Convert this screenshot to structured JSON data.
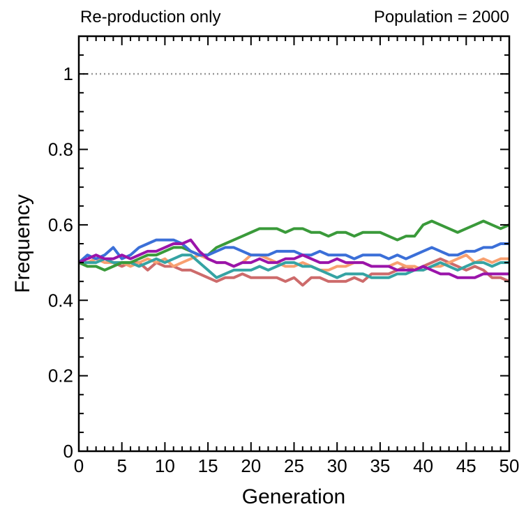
{
  "chart_data": {
    "type": "line",
    "title_left": "Re-production only",
    "title_right": "Population = 2000",
    "xlabel": "Generation",
    "ylabel": "Frequency",
    "x": [
      0,
      1,
      2,
      3,
      4,
      5,
      6,
      7,
      8,
      9,
      10,
      11,
      12,
      13,
      14,
      15,
      16,
      17,
      18,
      19,
      20,
      21,
      22,
      23,
      24,
      25,
      26,
      27,
      28,
      29,
      30,
      31,
      32,
      33,
      34,
      35,
      36,
      37,
      38,
      39,
      40,
      41,
      42,
      43,
      44,
      45,
      46,
      47,
      48,
      49,
      50
    ],
    "xlim": [
      0,
      50
    ],
    "xticks": [
      0,
      5,
      10,
      15,
      20,
      25,
      30,
      35,
      40,
      45,
      50
    ],
    "ylim": [
      0,
      1.1
    ],
    "yticks": [
      0,
      0.2,
      0.4,
      0.6,
      0.8,
      1
    ],
    "minor_divisions": {
      "x": 5,
      "y": 4
    },
    "reference_line": 1,
    "series": [
      {
        "color": "#cd6b6b",
        "values": [
          0.5,
          0.5,
          0.51,
          0.51,
          0.5,
          0.49,
          0.5,
          0.5,
          0.48,
          0.5,
          0.49,
          0.49,
          0.48,
          0.48,
          0.47,
          0.46,
          0.45,
          0.46,
          0.46,
          0.47,
          0.46,
          0.46,
          0.46,
          0.46,
          0.45,
          0.46,
          0.44,
          0.46,
          0.46,
          0.45,
          0.45,
          0.45,
          0.46,
          0.45,
          0.47,
          0.47,
          0.47,
          0.48,
          0.49,
          0.48,
          0.49,
          0.5,
          0.51,
          0.5,
          0.49,
          0.48,
          0.49,
          0.48,
          0.46,
          0.46,
          0.45
        ]
      },
      {
        "color": "#f8a070",
        "values": [
          0.5,
          0.5,
          0.51,
          0.5,
          0.5,
          0.5,
          0.49,
          0.5,
          0.51,
          0.5,
          0.51,
          0.49,
          0.5,
          0.51,
          0.52,
          0.51,
          0.5,
          0.5,
          0.49,
          0.5,
          0.52,
          0.52,
          0.51,
          0.5,
          0.49,
          0.49,
          0.5,
          0.49,
          0.48,
          0.48,
          0.49,
          0.49,
          0.5,
          0.5,
          0.49,
          0.49,
          0.49,
          0.5,
          0.49,
          0.49,
          0.48,
          0.49,
          0.49,
          0.5,
          0.51,
          0.52,
          0.5,
          0.51,
          0.5,
          0.51,
          0.51
        ]
      },
      {
        "color": "#35a3a3",
        "values": [
          0.5,
          0.5,
          0.5,
          0.51,
          0.5,
          0.5,
          0.5,
          0.49,
          0.5,
          0.51,
          0.5,
          0.51,
          0.52,
          0.52,
          0.5,
          0.48,
          0.46,
          0.47,
          0.48,
          0.48,
          0.48,
          0.49,
          0.48,
          0.49,
          0.5,
          0.5,
          0.49,
          0.49,
          0.48,
          0.47,
          0.46,
          0.47,
          0.47,
          0.47,
          0.46,
          0.46,
          0.46,
          0.47,
          0.47,
          0.48,
          0.48,
          0.49,
          0.5,
          0.49,
          0.48,
          0.49,
          0.5,
          0.5,
          0.49,
          0.5,
          0.5
        ]
      },
      {
        "color": "#3a9a3a",
        "values": [
          0.5,
          0.49,
          0.49,
          0.48,
          0.49,
          0.5,
          0.5,
          0.51,
          0.52,
          0.52,
          0.53,
          0.54,
          0.54,
          0.53,
          0.52,
          0.52,
          0.54,
          0.55,
          0.56,
          0.57,
          0.58,
          0.59,
          0.59,
          0.59,
          0.58,
          0.59,
          0.59,
          0.58,
          0.58,
          0.57,
          0.58,
          0.58,
          0.57,
          0.58,
          0.58,
          0.58,
          0.57,
          0.56,
          0.57,
          0.57,
          0.6,
          0.61,
          0.6,
          0.59,
          0.58,
          0.59,
          0.6,
          0.61,
          0.6,
          0.59,
          0.6
        ]
      },
      {
        "color": "#3b6fd8",
        "values": [
          0.5,
          0.52,
          0.51,
          0.52,
          0.54,
          0.51,
          0.52,
          0.54,
          0.55,
          0.56,
          0.56,
          0.56,
          0.55,
          0.53,
          0.52,
          0.52,
          0.53,
          0.54,
          0.54,
          0.53,
          0.52,
          0.52,
          0.52,
          0.53,
          0.53,
          0.53,
          0.52,
          0.52,
          0.53,
          0.52,
          0.52,
          0.52,
          0.51,
          0.52,
          0.52,
          0.52,
          0.51,
          0.52,
          0.51,
          0.52,
          0.53,
          0.54,
          0.53,
          0.52,
          0.52,
          0.53,
          0.53,
          0.54,
          0.54,
          0.55,
          0.55
        ]
      },
      {
        "color": "#9a14aa",
        "values": [
          0.5,
          0.51,
          0.52,
          0.51,
          0.51,
          0.52,
          0.51,
          0.52,
          0.53,
          0.53,
          0.54,
          0.55,
          0.55,
          0.56,
          0.53,
          0.51,
          0.5,
          0.5,
          0.49,
          0.5,
          0.5,
          0.51,
          0.5,
          0.5,
          0.51,
          0.51,
          0.52,
          0.51,
          0.5,
          0.5,
          0.51,
          0.5,
          0.5,
          0.5,
          0.49,
          0.49,
          0.49,
          0.48,
          0.48,
          0.48,
          0.49,
          0.48,
          0.47,
          0.47,
          0.46,
          0.46,
          0.46,
          0.47,
          0.47,
          0.47,
          0.47
        ]
      }
    ]
  }
}
